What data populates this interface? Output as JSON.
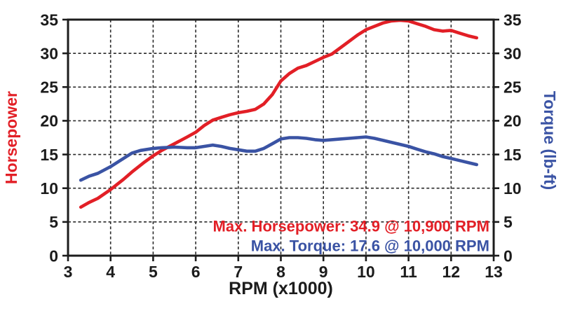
{
  "chart_data": {
    "type": "line",
    "title": "",
    "xlabel": "RPM (x1000)",
    "ylabel_left": "Horsepower",
    "ylabel_right": "Torque (lb-ft)",
    "xlim": [
      3,
      13
    ],
    "ylim": [
      0,
      35
    ],
    "x_ticks": [
      3,
      4,
      5,
      6,
      7,
      8,
      9,
      10,
      11,
      12,
      13
    ],
    "y_ticks_left": [
      0,
      5,
      10,
      15,
      20,
      25,
      30,
      35
    ],
    "y_ticks_right": [
      0,
      5,
      10,
      15,
      20,
      25,
      30,
      35
    ],
    "grid": {
      "x_gridlines": [
        4,
        5,
        6,
        7,
        8,
        9,
        10,
        11,
        12
      ],
      "y_gridlines": [
        5,
        10,
        15,
        20,
        25,
        30
      ],
      "style": "dashed"
    },
    "legend": "none",
    "colors": {
      "horsepower": "#e21f26",
      "torque": "#3a53a4",
      "axis": "#1c1c1c",
      "grid": "#2a2a2a",
      "background": "#ffffff"
    },
    "series": [
      {
        "name": "Horsepower",
        "axis": "left",
        "color_key": "horsepower",
        "x": [
          3.3,
          3.5,
          3.7,
          4.0,
          4.3,
          4.5,
          4.8,
          5.0,
          5.2,
          5.5,
          5.8,
          6.0,
          6.2,
          6.4,
          6.6,
          6.8,
          7.0,
          7.2,
          7.4,
          7.6,
          7.8,
          8.0,
          8.2,
          8.4,
          8.6,
          8.8,
          9.0,
          9.2,
          9.5,
          9.8,
          10.0,
          10.2,
          10.4,
          10.6,
          10.8,
          11.0,
          11.2,
          11.4,
          11.6,
          11.8,
          12.0,
          12.2,
          12.4,
          12.6
        ],
        "y": [
          7.2,
          7.9,
          8.5,
          9.8,
          11.3,
          12.4,
          13.9,
          14.8,
          15.6,
          16.6,
          17.6,
          18.3,
          19.3,
          20.1,
          20.5,
          20.9,
          21.2,
          21.4,
          21.7,
          22.5,
          23.9,
          25.9,
          27.0,
          27.8,
          28.2,
          28.8,
          29.4,
          29.9,
          31.3,
          32.7,
          33.5,
          34.0,
          34.5,
          34.8,
          34.9,
          34.8,
          34.4,
          34.0,
          33.5,
          33.3,
          33.4,
          33.0,
          32.6,
          32.3
        ]
      },
      {
        "name": "Torque",
        "axis": "right",
        "color_key": "torque",
        "x": [
          3.3,
          3.5,
          3.7,
          4.0,
          4.2,
          4.5,
          4.7,
          5.0,
          5.2,
          5.5,
          5.8,
          6.0,
          6.2,
          6.4,
          6.6,
          6.8,
          7.0,
          7.2,
          7.4,
          7.6,
          7.8,
          8.0,
          8.2,
          8.4,
          8.6,
          8.8,
          9.0,
          9.2,
          9.4,
          9.6,
          9.8,
          10.0,
          10.2,
          10.4,
          10.6,
          10.8,
          11.0,
          11.2,
          11.4,
          11.6,
          11.8,
          12.0,
          12.2,
          12.4,
          12.6
        ],
        "y": [
          11.2,
          11.8,
          12.2,
          13.2,
          14.0,
          15.2,
          15.6,
          15.9,
          16.0,
          16.1,
          16.0,
          16.0,
          16.2,
          16.4,
          16.2,
          15.9,
          15.7,
          15.5,
          15.5,
          15.9,
          16.6,
          17.3,
          17.5,
          17.5,
          17.4,
          17.2,
          17.1,
          17.2,
          17.3,
          17.4,
          17.5,
          17.6,
          17.4,
          17.1,
          16.8,
          16.5,
          16.2,
          15.8,
          15.4,
          15.1,
          14.7,
          14.4,
          14.1,
          13.8,
          13.5
        ]
      }
    ],
    "annotations": [
      {
        "text": "Max. Horsepower: 34.9 @ 10,900 RPM",
        "color_key": "horsepower",
        "x": 12.9,
        "y": 3.6,
        "align": "right"
      },
      {
        "text": "Max. Torque: 17.6 @ 10,000 RPM",
        "color_key": "torque",
        "x": 12.9,
        "y": 0.7,
        "align": "right"
      }
    ],
    "max_horsepower": {
      "value": 34.9,
      "rpm": 10900
    },
    "max_torque": {
      "value": 17.6,
      "rpm": 10000
    }
  }
}
